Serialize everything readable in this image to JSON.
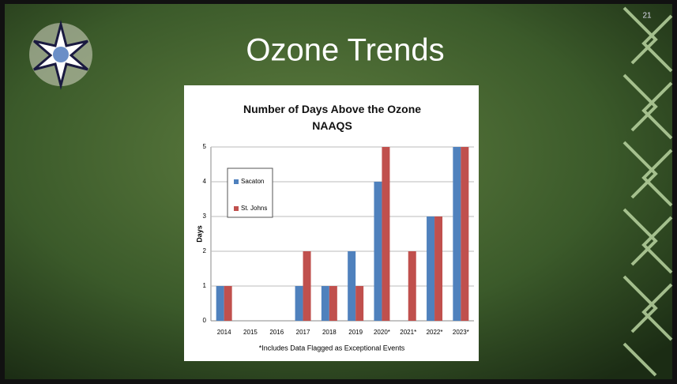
{
  "slide_title": "Ozone Trends",
  "slide_number": "21",
  "chart_data": {
    "type": "bar",
    "title": "Number of Days Above the Ozone NAAQS",
    "ylabel": "Days",
    "note": "*Includes Data Flagged as Exceptional Events",
    "categories": [
      "2014",
      "2015",
      "2016",
      "2017",
      "2018",
      "2019",
      "2020*",
      "2021*",
      "2022*",
      "2023*"
    ],
    "series": [
      {
        "name": "Sacaton",
        "color": "#4f81bd",
        "values": [
          1,
          0,
          0,
          1,
          1,
          2,
          4,
          0,
          3,
          5
        ]
      },
      {
        "name": "St. Johns",
        "color": "#c0504d",
        "values": [
          1,
          0,
          0,
          2,
          1,
          1,
          5,
          2,
          3,
          5
        ]
      }
    ],
    "ylim": [
      0,
      5
    ],
    "yticks": [
      0,
      1,
      2,
      3,
      4,
      5
    ],
    "grid": true,
    "legend": "upper left"
  }
}
